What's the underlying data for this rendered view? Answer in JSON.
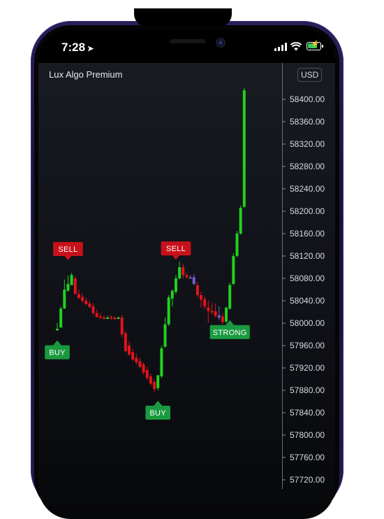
{
  "status_bar": {
    "time": "7:28"
  },
  "chart_header": {
    "title": "Lux Algo Premium",
    "currency": "USD"
  },
  "colors": {
    "bull": "#22d11f",
    "bear": "#e3121c",
    "neutral": "#7a5cc9",
    "sell_tag": "#c8111a",
    "buy_tag": "#1a9a3f"
  },
  "chart_data": {
    "type": "candlestick",
    "y_ticks": [
      58400,
      58360,
      58320,
      58280,
      58240,
      58200,
      58160,
      58120,
      58080,
      58040,
      58000,
      57960,
      57920,
      57880,
      57840,
      57800,
      57760,
      57720
    ],
    "y_tick_labels": [
      "58400.00",
      "58360.00",
      "58320.00",
      "58280.00",
      "58240.00",
      "58200.00",
      "58160.00",
      "58120.00",
      "58080.00",
      "58040.00",
      "58000.00",
      "57960.00",
      "57920.00",
      "57880.00",
      "57840.00",
      "57800.00",
      "57760.00",
      "57720.00"
    ],
    "ylim": [
      57710,
      58440
    ],
    "candles": [
      [
        57987,
        58000,
        57990,
        57988
      ],
      [
        57992,
        58030,
        58026,
        58000
      ],
      [
        58026,
        58078,
        58060,
        58028
      ],
      [
        58058,
        58085,
        58070,
        58056
      ],
      [
        58068,
        58090,
        58086,
        58069
      ],
      [
        58080,
        58084,
        58052,
        58060
      ],
      [
        58052,
        58060,
        58045,
        58043
      ],
      [
        58047,
        58054,
        58040,
        58036
      ],
      [
        58040,
        58046,
        58034,
        58032
      ],
      [
        58035,
        58040,
        58029,
        58027
      ],
      [
        58030,
        58036,
        58018,
        58014
      ],
      [
        58018,
        58024,
        58011,
        58010
      ],
      [
        58012,
        58018,
        58010,
        58008
      ],
      [
        58010,
        58014,
        58009,
        58007
      ],
      [
        58010,
        58013,
        58010,
        58008
      ],
      [
        58011,
        58014,
        58009,
        58006
      ],
      [
        58010,
        58012,
        58008,
        58006
      ],
      [
        58010,
        58012,
        58010,
        58008
      ],
      [
        58010,
        58015,
        57980,
        57975
      ],
      [
        57982,
        57986,
        57950,
        57948
      ],
      [
        57960,
        57968,
        57944,
        57942
      ],
      [
        57948,
        57954,
        57935,
        57932
      ],
      [
        57938,
        57945,
        57930,
        57926
      ],
      [
        57932,
        57938,
        57922,
        57920
      ],
      [
        57926,
        57930,
        57912,
        57908
      ],
      [
        57916,
        57922,
        57902,
        57898
      ],
      [
        57905,
        57910,
        57892,
        57888
      ],
      [
        57895,
        57900,
        57882,
        57876
      ],
      [
        57884,
        57890,
        57907,
        57880
      ],
      [
        57905,
        57960,
        57955,
        57902
      ],
      [
        57958,
        58010,
        57998,
        57956
      ],
      [
        57998,
        58050,
        58046,
        57995
      ],
      [
        58044,
        58060,
        58058,
        58030
      ],
      [
        58056,
        58086,
        58080,
        58052
      ],
      [
        58080,
        58110,
        58100,
        58078
      ],
      [
        58100,
        58106,
        58086,
        58080
      ],
      [
        58086,
        58090,
        58082,
        58080
      ],
      [
        58082,
        58086,
        58082,
        58081
      ],
      [
        58082,
        58088,
        58070,
        58068
      ],
      [
        58068,
        58074,
        58050,
        58046
      ],
      [
        58050,
        58056,
        58042,
        58028
      ],
      [
        58043,
        58048,
        58030,
        58025
      ],
      [
        58028,
        58040,
        58022,
        58001
      ],
      [
        58022,
        58036,
        58020,
        58015
      ],
      [
        58021,
        58035,
        58013,
        58010
      ],
      [
        58014,
        58030,
        58010,
        58005
      ],
      [
        58012,
        58018,
        58002,
        57998
      ],
      [
        58003,
        58008,
        58028,
        58000
      ],
      [
        58026,
        58072,
        58068,
        58024
      ],
      [
        58070,
        58125,
        58120,
        58068
      ],
      [
        58120,
        58165,
        58160,
        58118
      ],
      [
        58160,
        58210,
        58206,
        58158
      ],
      [
        58208,
        58420,
        58416,
        58206
      ]
    ],
    "neutral_indices": [
      37,
      38,
      45
    ],
    "signals": [
      {
        "label": "SELL",
        "type": "sell",
        "candle": 3
      },
      {
        "label": "BUY",
        "type": "buy",
        "candle": 0
      },
      {
        "label": "SELL",
        "type": "sell",
        "candle": 33
      },
      {
        "label": "BUY",
        "type": "buy",
        "candle": 28
      },
      {
        "label": "STRONG",
        "type": "strong",
        "candle": 48
      }
    ]
  }
}
